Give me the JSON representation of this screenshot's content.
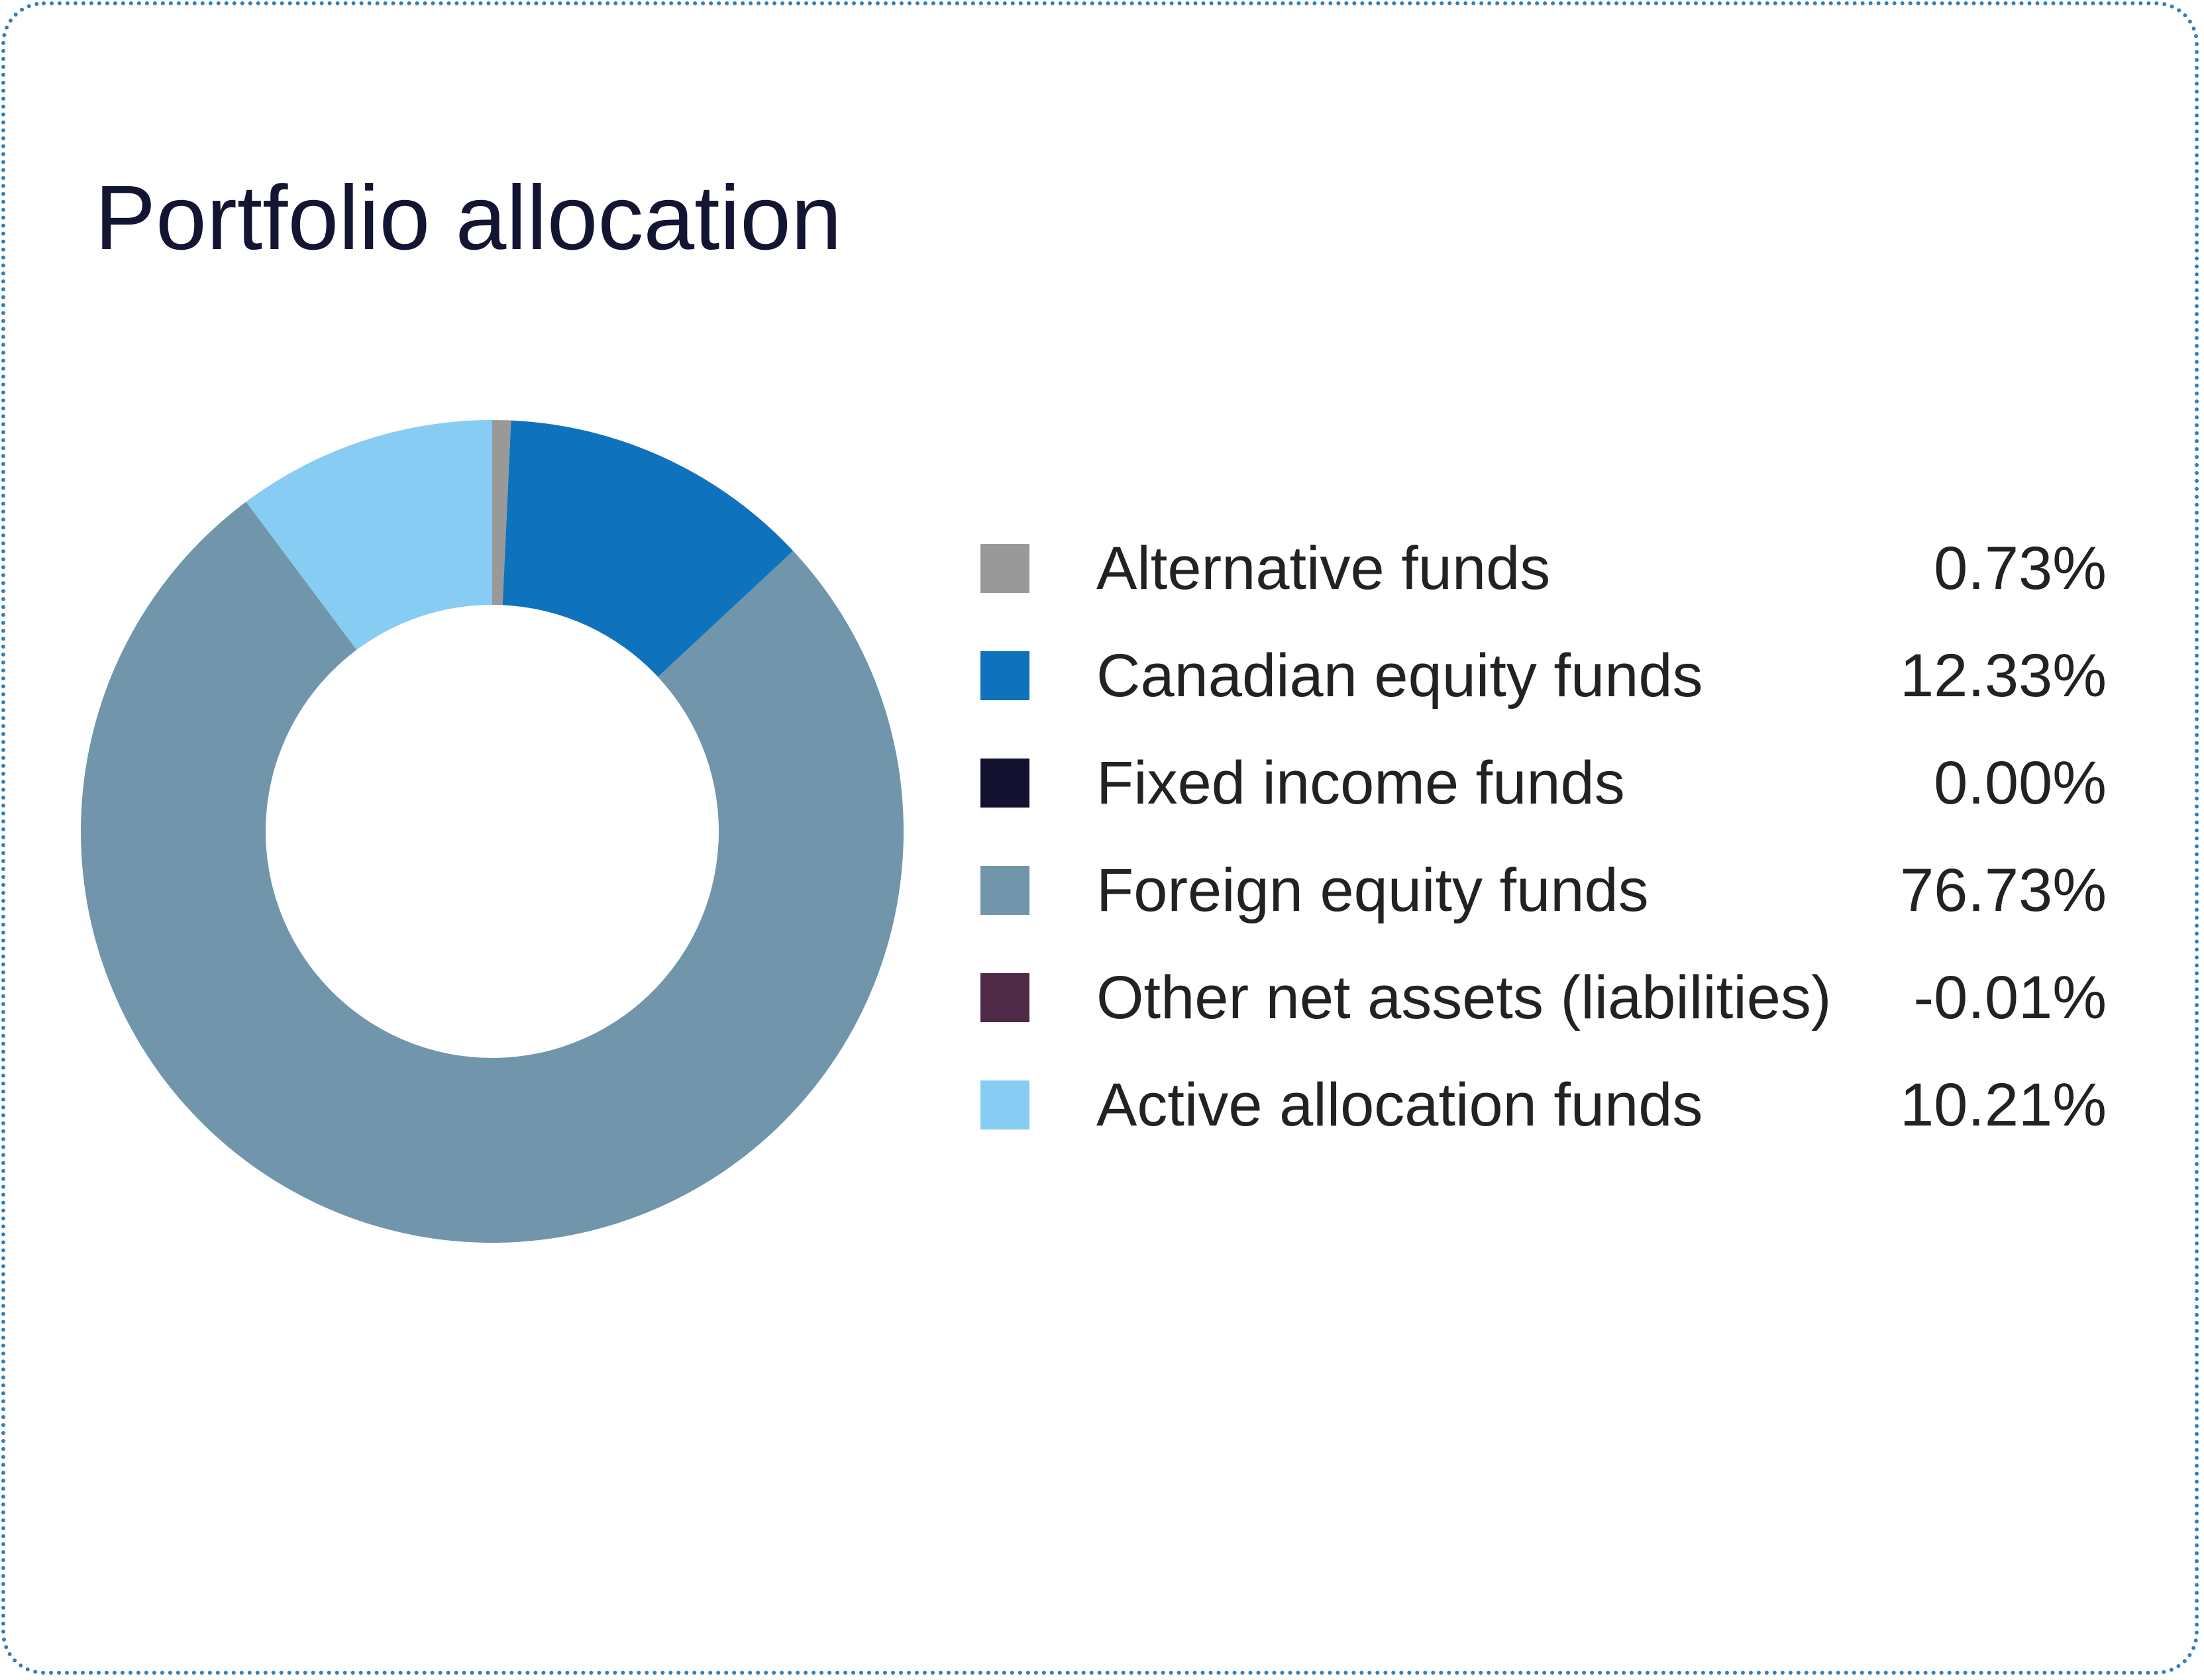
{
  "chart_data": {
    "type": "pie",
    "title": "Portfolio allocation",
    "variant": "donut",
    "slices": [
      {
        "label": "Alternative funds",
        "value": 0.73,
        "display": "0.73%",
        "color": "#999999"
      },
      {
        "label": "Canadian equity funds",
        "value": 12.33,
        "display": "12.33%",
        "color": "#0f72bd"
      },
      {
        "label": "Fixed income funds",
        "value": 0.0,
        "display": "0.00%",
        "color": "#12112f"
      },
      {
        "label": "Foreign equity funds",
        "value": 76.73,
        "display": "76.73%",
        "color": "#7195ab"
      },
      {
        "label": "Other net assets (liabilities)",
        "value": -0.01,
        "display": "-0.01%",
        "color": "#4e2a47"
      },
      {
        "label": "Active allocation funds",
        "value": 10.21,
        "display": "10.21%",
        "color": "#87ccf3"
      }
    ],
    "legend_position": "right"
  }
}
